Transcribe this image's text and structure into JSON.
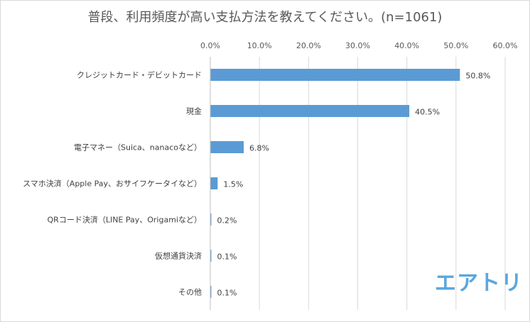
{
  "chart_data": {
    "type": "bar",
    "orientation": "horizontal",
    "title": "普段、利用頻度が高い支払方法を教えてください。(n=1061)",
    "categories": [
      "クレジットカード・デビットカード",
      "現金",
      "電子マネー（Suica、nanacoなど）",
      "スマホ決済（Apple Pay、おサイフケータイなど）",
      "QRコード決済（LINE Pay、Origamiなど）",
      "仮想通貨決済",
      "その他"
    ],
    "values": [
      50.8,
      40.5,
      6.8,
      1.5,
      0.2,
      0.1,
      0.1
    ],
    "data_labels": [
      "50.8%",
      "40.5%",
      "6.8%",
      "1.5%",
      "0.2%",
      "0.1%",
      "0.1%"
    ],
    "xlim": [
      0,
      60
    ],
    "x_ticks": [
      0,
      10,
      20,
      30,
      40,
      50,
      60
    ],
    "x_tick_labels": [
      "0.0%",
      "10.0%",
      "20.0%",
      "30.0%",
      "40.0%",
      "50.0%",
      "60.0%"
    ],
    "x_axis_position": "top",
    "grid": true,
    "bar_color": "#5b9bd5",
    "grid_color": "#d9d9d9"
  },
  "brand": {
    "logo_text": "エアトリ",
    "color": "#5aa7de"
  }
}
